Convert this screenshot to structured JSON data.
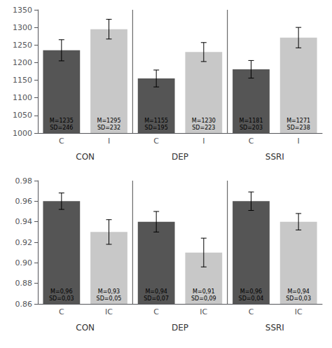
{
  "chart_data": [
    {
      "type": "bar",
      "categories": [
        "C",
        "I",
        "C",
        "I",
        "C",
        "I"
      ],
      "groups": [
        "CON",
        "DEP",
        "SSRI"
      ],
      "values": [
        1235,
        1295,
        1155,
        1230,
        1181,
        1271
      ],
      "errors": [
        30,
        28,
        24,
        27,
        25,
        29
      ],
      "colors": [
        "#555555",
        "#c8c8c8",
        "#555555",
        "#c8c8c8",
        "#555555",
        "#c8c8c8"
      ],
      "annotations": [
        "M=1235\nSD=246",
        "M=1295\nSD=232",
        "M=1155\nSD=195",
        "M=1230\nSD=223",
        "M=1181\nSD=203",
        "M=1271\nSD=238"
      ],
      "ylim": [
        1000,
        1350
      ],
      "yticks": [
        1000,
        1050,
        1100,
        1150,
        1200,
        1250,
        1300,
        1350
      ],
      "grid": false
    },
    {
      "type": "bar",
      "categories": [
        "C",
        "IC",
        "C",
        "IC",
        "C",
        "IC"
      ],
      "groups": [
        "CON",
        "DEP",
        "SSRI"
      ],
      "values": [
        0.96,
        0.93,
        0.94,
        0.91,
        0.96,
        0.94
      ],
      "errors": [
        0.008,
        0.012,
        0.01,
        0.014,
        0.009,
        0.008
      ],
      "colors": [
        "#555555",
        "#c8c8c8",
        "#555555",
        "#c8c8c8",
        "#555555",
        "#c8c8c8"
      ],
      "annotations": [
        "M=0,96\nSD=0,03",
        "M=0,93\nSD=0,05",
        "M=0,94\nSD=0,07",
        "M=0,91\nSD=0,09",
        "M=0,96\nSD=0,04",
        "M=0,94\nSD=0,03"
      ],
      "ylim": [
        0.86,
        0.98
      ],
      "yticks": [
        0.86,
        0.88,
        {
          "value": 0.9,
          "label": "0.90"
        },
        0.92,
        0.94,
        0.96,
        0.98
      ],
      "grid": false
    }
  ]
}
